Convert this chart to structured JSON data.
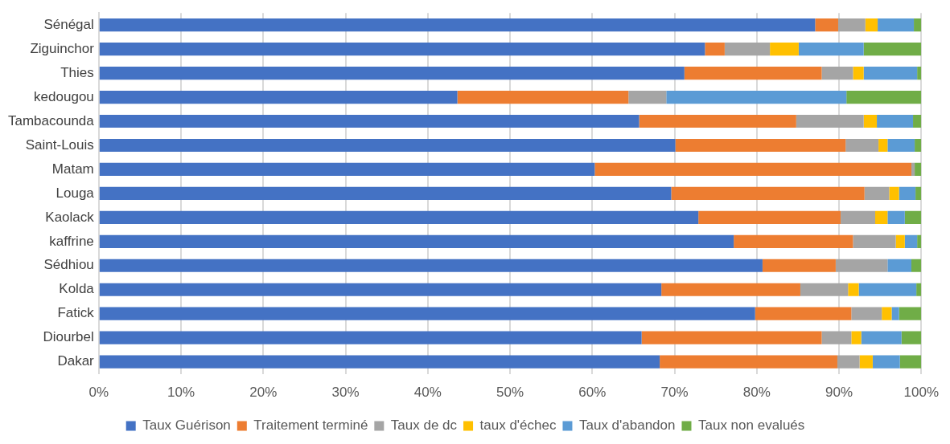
{
  "chart_data": {
    "type": "bar",
    "orientation": "horizontal",
    "stacked": true,
    "categories": [
      "Sénégal",
      "Ziguinchor",
      "Thies",
      "kedougou",
      "Tambacounda",
      "Saint-Louis",
      "Matam",
      "Louga",
      "Kaolack",
      "kaffrine",
      "Sédhiou",
      "Kolda",
      "Fatick",
      "Diourbel",
      "Dakar"
    ],
    "series": [
      {
        "name": "Taux Guérison",
        "color": "#4472c4",
        "values": [
          87.1,
          73.7,
          71.2,
          43.6,
          65.7,
          70.1,
          60.3,
          69.6,
          72.9,
          77.2,
          80.7,
          68.4,
          79.8,
          66.0,
          68.2
        ]
      },
      {
        "name": "Traitement terminé",
        "color": "#ed7d31",
        "values": [
          2.8,
          2.4,
          16.7,
          20.8,
          19.1,
          20.7,
          38.5,
          23.5,
          17.3,
          14.5,
          8.9,
          16.9,
          11.7,
          21.9,
          21.6
        ]
      },
      {
        "name": "Taux de dc",
        "color": "#a5a5a5",
        "values": [
          3.3,
          5.5,
          3.8,
          4.6,
          8.2,
          4.0,
          0.4,
          3.0,
          4.2,
          5.2,
          6.3,
          5.8,
          3.7,
          3.6,
          2.7
        ]
      },
      {
        "name": "taux d'échec",
        "color": "#ffc000",
        "values": [
          1.5,
          3.5,
          1.3,
          0,
          1.6,
          1.1,
          0,
          1.2,
          1.5,
          1.1,
          0,
          1.3,
          1.2,
          1.2,
          1.6
        ]
      },
      {
        "name": "Taux d'abandon",
        "color": "#5b9bd5",
        "values": [
          4.4,
          7.9,
          6.5,
          21.9,
          4.4,
          3.3,
          0,
          2.0,
          2.1,
          1.5,
          2.9,
          7.0,
          0.9,
          4.9,
          3.3
        ]
      },
      {
        "name": "Taux non evalués",
        "color": "#70ad47",
        "values": [
          0.9,
          7.0,
          0.5,
          9.1,
          1.0,
          0.8,
          0.8,
          0.7,
          2.0,
          0.5,
          1.2,
          0.6,
          2.7,
          2.4,
          2.6
        ]
      }
    ],
    "xlim": [
      0,
      100
    ],
    "xticks": [
      {
        "value": 0,
        "label": "0%"
      },
      {
        "value": 10,
        "label": "10%"
      },
      {
        "value": 20,
        "label": "20%"
      },
      {
        "value": 30,
        "label": "30%"
      },
      {
        "value": 40,
        "label": "40%"
      },
      {
        "value": 50,
        "label": "50%"
      },
      {
        "value": 60,
        "label": "60%"
      },
      {
        "value": 70,
        "label": "70%"
      },
      {
        "value": 80,
        "label": "80%"
      },
      {
        "value": 90,
        "label": "90%"
      },
      {
        "value": 100,
        "label": "100%"
      }
    ],
    "grid": "x",
    "legend": "bottom"
  }
}
